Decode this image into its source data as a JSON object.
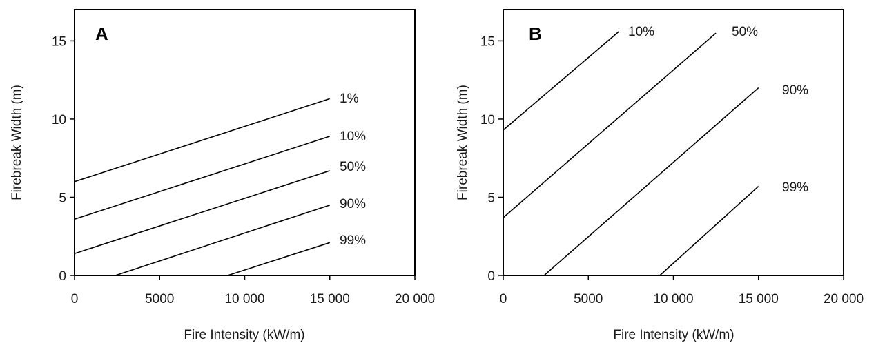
{
  "chart_data": [
    {
      "type": "line",
      "panel_label": "A",
      "xlabel": "Fire Intensity (kW/m)",
      "ylabel": "Firebreak Width (m)",
      "xlim": [
        0,
        20000
      ],
      "ylim": [
        0,
        17
      ],
      "x_ticks": [
        0,
        5000,
        10000,
        15000,
        20000
      ],
      "x_tick_labels": [
        "0",
        "5000",
        "10 000",
        "15 000",
        "20 000"
      ],
      "y_ticks": [
        0,
        5,
        10,
        15
      ],
      "y_tick_labels": [
        "0",
        "5",
        "10",
        "15"
      ],
      "grid": false,
      "series": [
        {
          "name": "1%",
          "points": [
            [
              0,
              6.0
            ],
            [
              15000,
              11.3
            ]
          ]
        },
        {
          "name": "10%",
          "points": [
            [
              0,
              3.6
            ],
            [
              15000,
              8.9
            ]
          ]
        },
        {
          "name": "50%",
          "points": [
            [
              0,
              1.4
            ],
            [
              15000,
              6.7
            ]
          ]
        },
        {
          "name": "90%",
          "points": [
            [
              2400,
              0
            ],
            [
              15000,
              4.5
            ]
          ]
        },
        {
          "name": "99%",
          "points": [
            [
              9000,
              0
            ],
            [
              15000,
              2.1
            ]
          ]
        }
      ]
    },
    {
      "type": "line",
      "panel_label": "B",
      "xlabel": "Fire Intensity (kW/m)",
      "ylabel": "Firebreak Width (m)",
      "xlim": [
        0,
        20000
      ],
      "ylim": [
        0,
        17
      ],
      "x_ticks": [
        0,
        5000,
        10000,
        15000,
        20000
      ],
      "x_tick_labels": [
        "0",
        "5000",
        "10 000",
        "15 000",
        "20 000"
      ],
      "y_ticks": [
        0,
        5,
        10,
        15
      ],
      "y_tick_labels": [
        "0",
        "5",
        "10",
        "15"
      ],
      "grid": false,
      "series": [
        {
          "name": "10%",
          "points": [
            [
              0,
              9.3
            ],
            [
              6800,
              15.6
            ]
          ]
        },
        {
          "name": "50%",
          "points": [
            [
              0,
              3.7
            ],
            [
              12500,
              15.5
            ]
          ]
        },
        {
          "name": "90%",
          "points": [
            [
              2400,
              0
            ],
            [
              15000,
              12.0
            ]
          ]
        },
        {
          "name": "99%",
          "points": [
            [
              9200,
              0
            ],
            [
              15000,
              5.7
            ]
          ]
        }
      ]
    }
  ]
}
